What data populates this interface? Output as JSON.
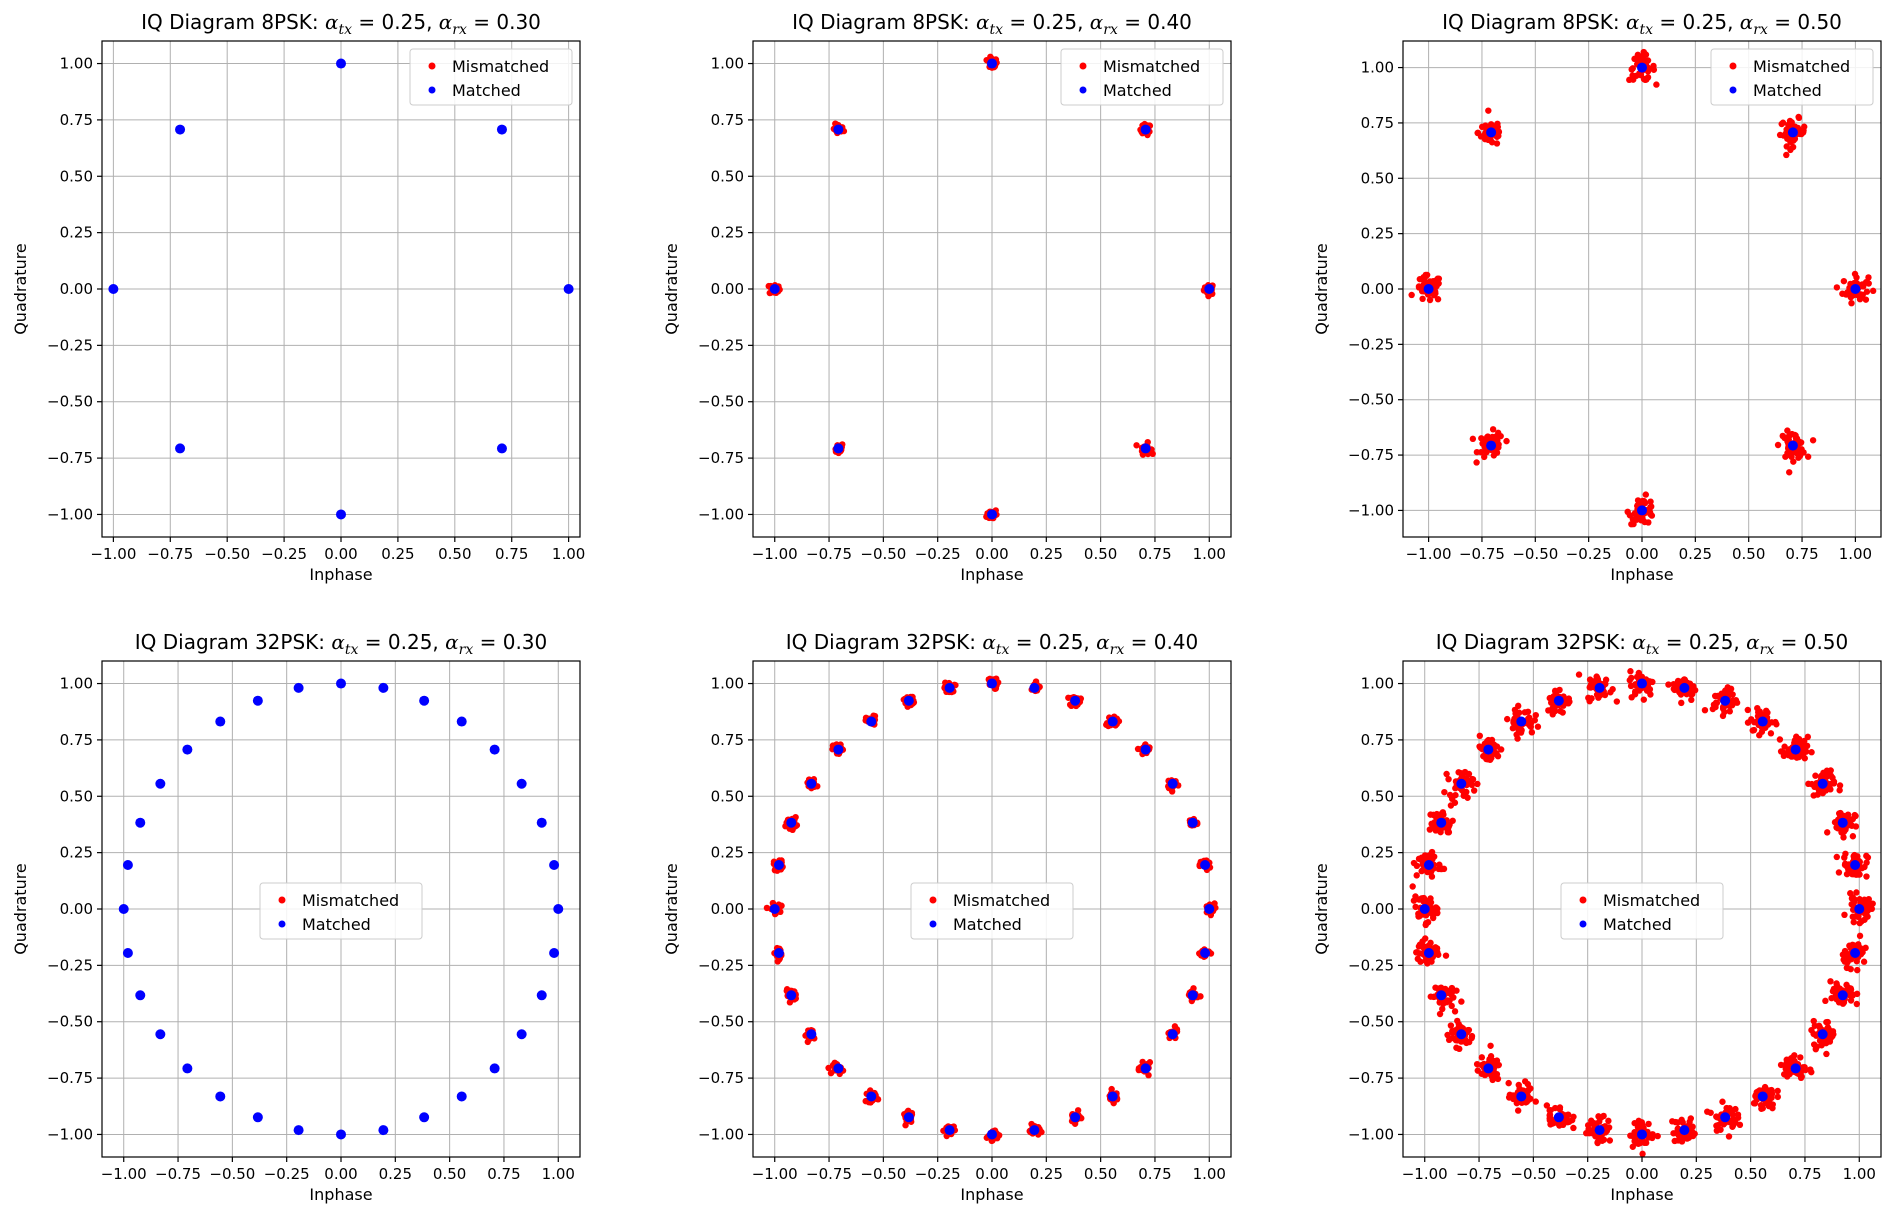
{
  "chart_data": [
    {
      "type": "scatter",
      "title": "IQ Diagram 8PSK: $\\alpha_{tx} = 0.25$, $\\alpha_{rx} = 0.30$",
      "title_main": "IQ Diagram 8PSK: ",
      "alpha_tx": "0.25",
      "alpha_rx": "0.30",
      "xlabel": "Inphase",
      "ylabel": "Quadrature",
      "xlim": [
        -1.05,
        1.05
      ],
      "ylim": [
        -1.1,
        1.1
      ],
      "xticks": [
        "−1.00",
        "−0.75",
        "−0.50",
        "−0.25",
        "0.00",
        "0.25",
        "0.50",
        "0.75",
        "1.00"
      ],
      "yticks": [
        "−1.00",
        "−0.75",
        "−0.50",
        "−0.25",
        "0.00",
        "0.25",
        "0.50",
        "0.75",
        "1.00"
      ],
      "grid": true,
      "legend_position": "upper-right",
      "legend": [
        "Mismatched",
        "Matched"
      ],
      "constellation_points": 8,
      "mismatch_spread": 0.0,
      "colors": {
        "mismatched": "#ff0000",
        "matched": "#0000ff"
      }
    },
    {
      "type": "scatter",
      "title": "IQ Diagram 8PSK: $\\alpha_{tx} = 0.25$, $\\alpha_{rx} = 0.40$",
      "title_main": "IQ Diagram 8PSK: ",
      "alpha_tx": "0.25",
      "alpha_rx": "0.40",
      "xlabel": "Inphase",
      "ylabel": "Quadrature",
      "xlim": [
        -1.1,
        1.1
      ],
      "ylim": [
        -1.1,
        1.1
      ],
      "xticks": [
        "−1.00",
        "−0.75",
        "−0.50",
        "−0.25",
        "0.00",
        "0.25",
        "0.50",
        "0.75",
        "1.00"
      ],
      "yticks": [
        "−1.00",
        "−0.75",
        "−0.50",
        "−0.25",
        "0.00",
        "0.25",
        "0.50",
        "0.75",
        "1.00"
      ],
      "grid": true,
      "legend_position": "upper-right",
      "legend": [
        "Mismatched",
        "Matched"
      ],
      "constellation_points": 8,
      "mismatch_spread": 0.012,
      "colors": {
        "mismatched": "#ff0000",
        "matched": "#0000ff"
      }
    },
    {
      "type": "scatter",
      "title": "IQ Diagram 8PSK: $\\alpha_{tx} = 0.25$, $\\alpha_{rx} = 0.50$",
      "title_main": "IQ Diagram 8PSK: ",
      "alpha_tx": "0.25",
      "alpha_rx": "0.50",
      "xlabel": "Inphase",
      "ylabel": "Quadrature",
      "xlim": [
        -1.12,
        1.12
      ],
      "ylim": [
        -1.12,
        1.12
      ],
      "xticks": [
        "−1.00",
        "−0.75",
        "−0.50",
        "−0.25",
        "0.00",
        "0.25",
        "0.50",
        "0.75",
        "1.00"
      ],
      "yticks": [
        "−1.00",
        "−0.75",
        "−0.50",
        "−0.25",
        "0.00",
        "0.25",
        "0.50",
        "0.75",
        "1.00"
      ],
      "grid": true,
      "legend_position": "upper-right",
      "legend": [
        "Mismatched",
        "Matched"
      ],
      "constellation_points": 8,
      "mismatch_spread": 0.03,
      "colors": {
        "mismatched": "#ff0000",
        "matched": "#0000ff"
      }
    },
    {
      "type": "scatter",
      "title": "IQ Diagram 32PSK: $\\alpha_{tx} = 0.25$, $\\alpha_{rx} = 0.30$",
      "title_main": "IQ Diagram 32PSK: ",
      "alpha_tx": "0.25",
      "alpha_rx": "0.30",
      "xlabel": "Inphase",
      "ylabel": "Quadrature",
      "xlim": [
        -1.1,
        1.1
      ],
      "ylim": [
        -1.1,
        1.1
      ],
      "xticks": [
        "−1.00",
        "−0.75",
        "−0.50",
        "−0.25",
        "0.00",
        "0.25",
        "0.50",
        "0.75",
        "1.00"
      ],
      "yticks": [
        "−1.00",
        "−0.75",
        "−0.50",
        "−0.25",
        "0.00",
        "0.25",
        "0.50",
        "0.75",
        "1.00"
      ],
      "grid": true,
      "legend_position": "center",
      "legend": [
        "Mismatched",
        "Matched"
      ],
      "constellation_points": 32,
      "mismatch_spread": 0.0,
      "colors": {
        "mismatched": "#ff0000",
        "matched": "#0000ff"
      }
    },
    {
      "type": "scatter",
      "title": "IQ Diagram 32PSK: $\\alpha_{tx} = 0.25$, $\\alpha_{rx} = 0.40$",
      "title_main": "IQ Diagram 32PSK: ",
      "alpha_tx": "0.25",
      "alpha_rx": "0.40",
      "xlabel": "Inphase",
      "ylabel": "Quadrature",
      "xlim": [
        -1.1,
        1.1
      ],
      "ylim": [
        -1.1,
        1.1
      ],
      "xticks": [
        "−1.00",
        "−0.75",
        "−0.50",
        "−0.25",
        "0.00",
        "0.25",
        "0.50",
        "0.75",
        "1.00"
      ],
      "yticks": [
        "−1.00",
        "−0.75",
        "−0.50",
        "−0.25",
        "0.00",
        "0.25",
        "0.50",
        "0.75",
        "1.00"
      ],
      "grid": true,
      "legend_position": "center",
      "legend": [
        "Mismatched",
        "Matched"
      ],
      "constellation_points": 32,
      "mismatch_spread": 0.012,
      "colors": {
        "mismatched": "#ff0000",
        "matched": "#0000ff"
      }
    },
    {
      "type": "scatter",
      "title": "IQ Diagram 32PSK: $\\alpha_{tx} = 0.25$, $\\alpha_{rx} = 0.50$",
      "title_main": "IQ Diagram 32PSK: ",
      "alpha_tx": "0.25",
      "alpha_rx": "0.50",
      "xlabel": "Inphase",
      "ylabel": "Quadrature",
      "xlim": [
        -1.1,
        1.1
      ],
      "ylim": [
        -1.1,
        1.1
      ],
      "xticks": [
        "−1.00",
        "−0.75",
        "−0.50",
        "−0.25",
        "0.00",
        "0.25",
        "0.50",
        "0.75",
        "1.00"
      ],
      "yticks": [
        "−1.00",
        "−0.75",
        "−0.50",
        "−0.25",
        "0.00",
        "0.25",
        "0.50",
        "0.75",
        "1.00"
      ],
      "grid": true,
      "legend_position": "center",
      "legend": [
        "Mismatched",
        "Matched"
      ],
      "constellation_points": 32,
      "mismatch_spread": 0.028,
      "colors": {
        "mismatched": "#ff0000",
        "matched": "#0000ff"
      }
    }
  ]
}
